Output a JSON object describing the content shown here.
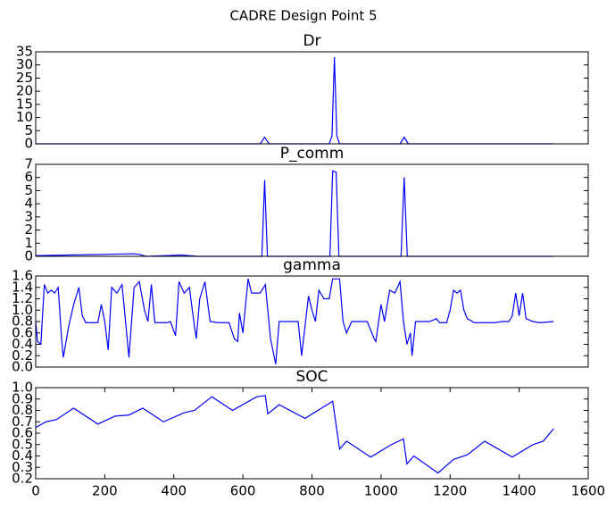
{
  "title": "CADRE Design Point 5",
  "chart_data": [
    {
      "type": "line",
      "title": "Dr",
      "color": "#0000ff",
      "xlim": [
        0,
        1600
      ],
      "ylim": [
        0,
        35
      ],
      "yticks": [
        0,
        5,
        10,
        15,
        20,
        25,
        30,
        35
      ],
      "x": [
        0,
        650,
        663,
        676,
        850,
        858,
        865,
        872,
        880,
        1055,
        1067,
        1079,
        1500
      ],
      "values": [
        0,
        0,
        2.5,
        0,
        0,
        3,
        33,
        3,
        0,
        0,
        2.5,
        0,
        0
      ]
    },
    {
      "type": "line",
      "title": "P_comm",
      "color": "#0000ff",
      "xlim": [
        0,
        1600
      ],
      "ylim": [
        0,
        7
      ],
      "yticks": [
        0,
        1,
        2,
        3,
        4,
        5,
        6,
        7
      ],
      "x": [
        0,
        100,
        200,
        280,
        300,
        320,
        380,
        420,
        470,
        655,
        663,
        671,
        852,
        860,
        870,
        878,
        1058,
        1067,
        1076,
        1500
      ],
      "values": [
        0.05,
        0.1,
        0.15,
        0.2,
        0.15,
        0,
        0.05,
        0.1,
        0,
        0,
        5.8,
        0,
        0,
        6.5,
        6.4,
        0,
        0,
        6.0,
        0,
        0
      ]
    },
    {
      "type": "line",
      "title": "gamma",
      "color": "#0000ff",
      "xlim": [
        0,
        1600
      ],
      "ylim": [
        0,
        1.6
      ],
      "yticks": [
        {
          "value": 0,
          "label": "0.0"
        },
        0.2,
        0.4,
        0.6,
        0.8,
        {
          "value": 1,
          "label": "1.0"
        },
        1.2,
        1.4,
        1.6
      ],
      "x": [
        0,
        5,
        15,
        25,
        35,
        45,
        55,
        65,
        75,
        80,
        95,
        110,
        125,
        135,
        145,
        180,
        190,
        200,
        210,
        220,
        235,
        250,
        270,
        285,
        300,
        315,
        325,
        335,
        345,
        380,
        390,
        405,
        415,
        430,
        445,
        460,
        465,
        475,
        490,
        505,
        530,
        560,
        575,
        585,
        590,
        600,
        615,
        625,
        650,
        665,
        680,
        695,
        705,
        740,
        760,
        770,
        790,
        800,
        810,
        820,
        835,
        850,
        860,
        880,
        890,
        900,
        915,
        960,
        980,
        985,
        1000,
        1010,
        1025,
        1040,
        1055,
        1065,
        1075,
        1085,
        1090,
        1100,
        1140,
        1160,
        1170,
        1190,
        1200,
        1210,
        1220,
        1230,
        1240,
        1250,
        1270,
        1330,
        1350,
        1370,
        1380,
        1390,
        1400,
        1410,
        1420,
        1440,
        1460,
        1500
      ],
      "values": [
        0.8,
        0.45,
        0.4,
        1.45,
        1.3,
        1.35,
        1.3,
        1.4,
        0.5,
        0.17,
        0.7,
        1.1,
        1.4,
        0.9,
        0.78,
        0.78,
        1.1,
        0.8,
        0.3,
        1.4,
        1.3,
        1.45,
        0.17,
        1.4,
        1.5,
        1.0,
        0.8,
        1.45,
        0.78,
        0.78,
        0.8,
        0.55,
        1.5,
        1.3,
        1.4,
        0.7,
        0.5,
        1.2,
        1.5,
        0.8,
        0.78,
        0.78,
        0.5,
        0.45,
        0.95,
        0.6,
        1.55,
        1.3,
        1.3,
        1.45,
        0.5,
        0.05,
        0.8,
        0.8,
        0.8,
        0.2,
        1.25,
        1.0,
        0.8,
        1.35,
        1.2,
        1.2,
        1.55,
        1.55,
        0.8,
        0.6,
        0.8,
        0.8,
        0.5,
        0.45,
        1.1,
        0.8,
        1.35,
        1.3,
        1.5,
        0.8,
        0.4,
        0.6,
        0.2,
        0.8,
        0.8,
        0.85,
        0.78,
        0.78,
        1.0,
        1.35,
        1.3,
        1.35,
        1.0,
        0.85,
        0.78,
        0.78,
        0.8,
        0.8,
        0.9,
        1.3,
        0.9,
        1.3,
        0.85,
        0.8,
        0.78,
        0.8
      ]
    },
    {
      "type": "line",
      "title": "SOC",
      "color": "#0000ff",
      "xlim": [
        0,
        1600
      ],
      "ylim": [
        0.2,
        1.0
      ],
      "yticks": [
        0.2,
        0.3,
        0.4,
        0.5,
        0.6,
        0.7,
        0.8,
        0.9,
        {
          "value": 1,
          "label": "1.0"
        }
      ],
      "xticks": [
        0,
        200,
        400,
        600,
        800,
        1000,
        1200,
        1400,
        1600
      ],
      "x": [
        0,
        30,
        60,
        110,
        180,
        230,
        270,
        310,
        370,
        430,
        460,
        510,
        570,
        640,
        665,
        672,
        705,
        780,
        860,
        880,
        900,
        970,
        1030,
        1065,
        1075,
        1095,
        1165,
        1210,
        1250,
        1300,
        1380,
        1440,
        1470,
        1500
      ],
      "values": [
        0.65,
        0.7,
        0.72,
        0.82,
        0.68,
        0.75,
        0.76,
        0.82,
        0.7,
        0.78,
        0.8,
        0.92,
        0.8,
        0.92,
        0.93,
        0.77,
        0.85,
        0.73,
        0.88,
        0.46,
        0.53,
        0.39,
        0.5,
        0.55,
        0.33,
        0.4,
        0.25,
        0.37,
        0.41,
        0.53,
        0.39,
        0.5,
        0.53,
        0.64
      ]
    }
  ]
}
